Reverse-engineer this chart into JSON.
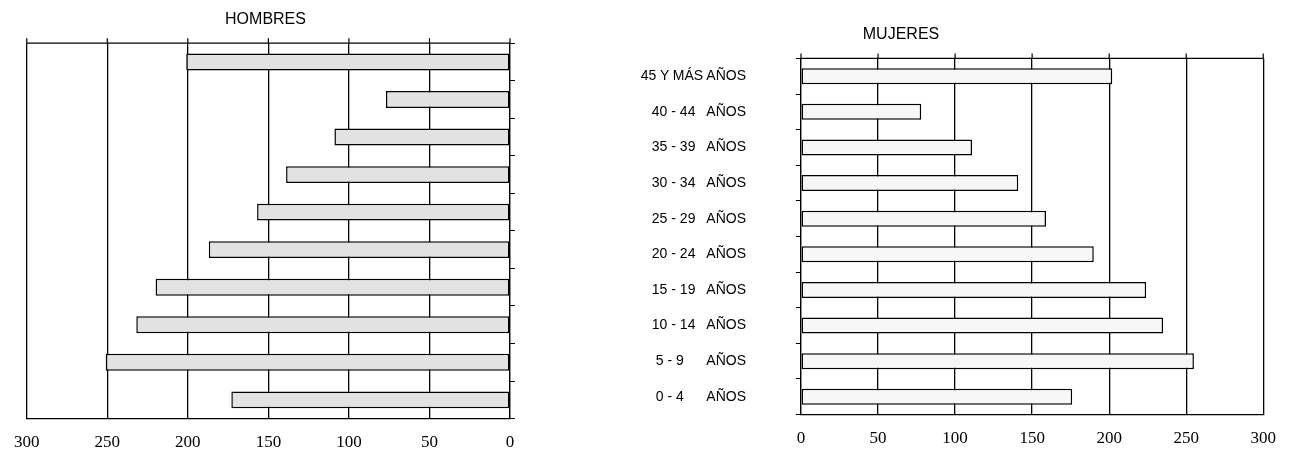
{
  "chart_data": [
    {
      "type": "bar",
      "title": "HOMBRES",
      "orientation": "horizontal",
      "categories": [
        null,
        null,
        null,
        null,
        null,
        null,
        null,
        null,
        null,
        null
      ],
      "series": [
        {
          "color": "#e2e2e2",
          "values": [
            201,
            77,
            109,
            139,
            157,
            187,
            220,
            232,
            251,
            173
          ]
        }
      ],
      "xlim": [
        300,
        0
      ],
      "xticks": [
        300,
        250,
        200,
        150,
        100,
        50,
        0
      ],
      "grid": "x",
      "legend": false,
      "tick_labels": "x"
    },
    {
      "type": "bar",
      "title": "MUJERES",
      "orientation": "horizontal",
      "categories": [
        "45 Y MÁS AÑOS",
        "40 - 44   AÑOS",
        "35 - 39   AÑOS",
        "30 - 34   AÑOS",
        "25 - 29   AÑOS",
        "20 - 24   AÑOS",
        "15 - 19   AÑOS",
        "10 - 14   AÑOS",
        "5 - 9      AÑOS",
        "0 - 4      AÑOS"
      ],
      "series": [
        {
          "color": "#f7f7f7",
          "values": [
            202,
            78,
            111,
            141,
            159,
            190,
            224,
            235,
            255,
            176
          ]
        }
      ],
      "xlim": [
        0,
        300
      ],
      "xticks": [
        0,
        50,
        100,
        150,
        200,
        250,
        300
      ],
      "grid": "x",
      "legend": false
    }
  ]
}
